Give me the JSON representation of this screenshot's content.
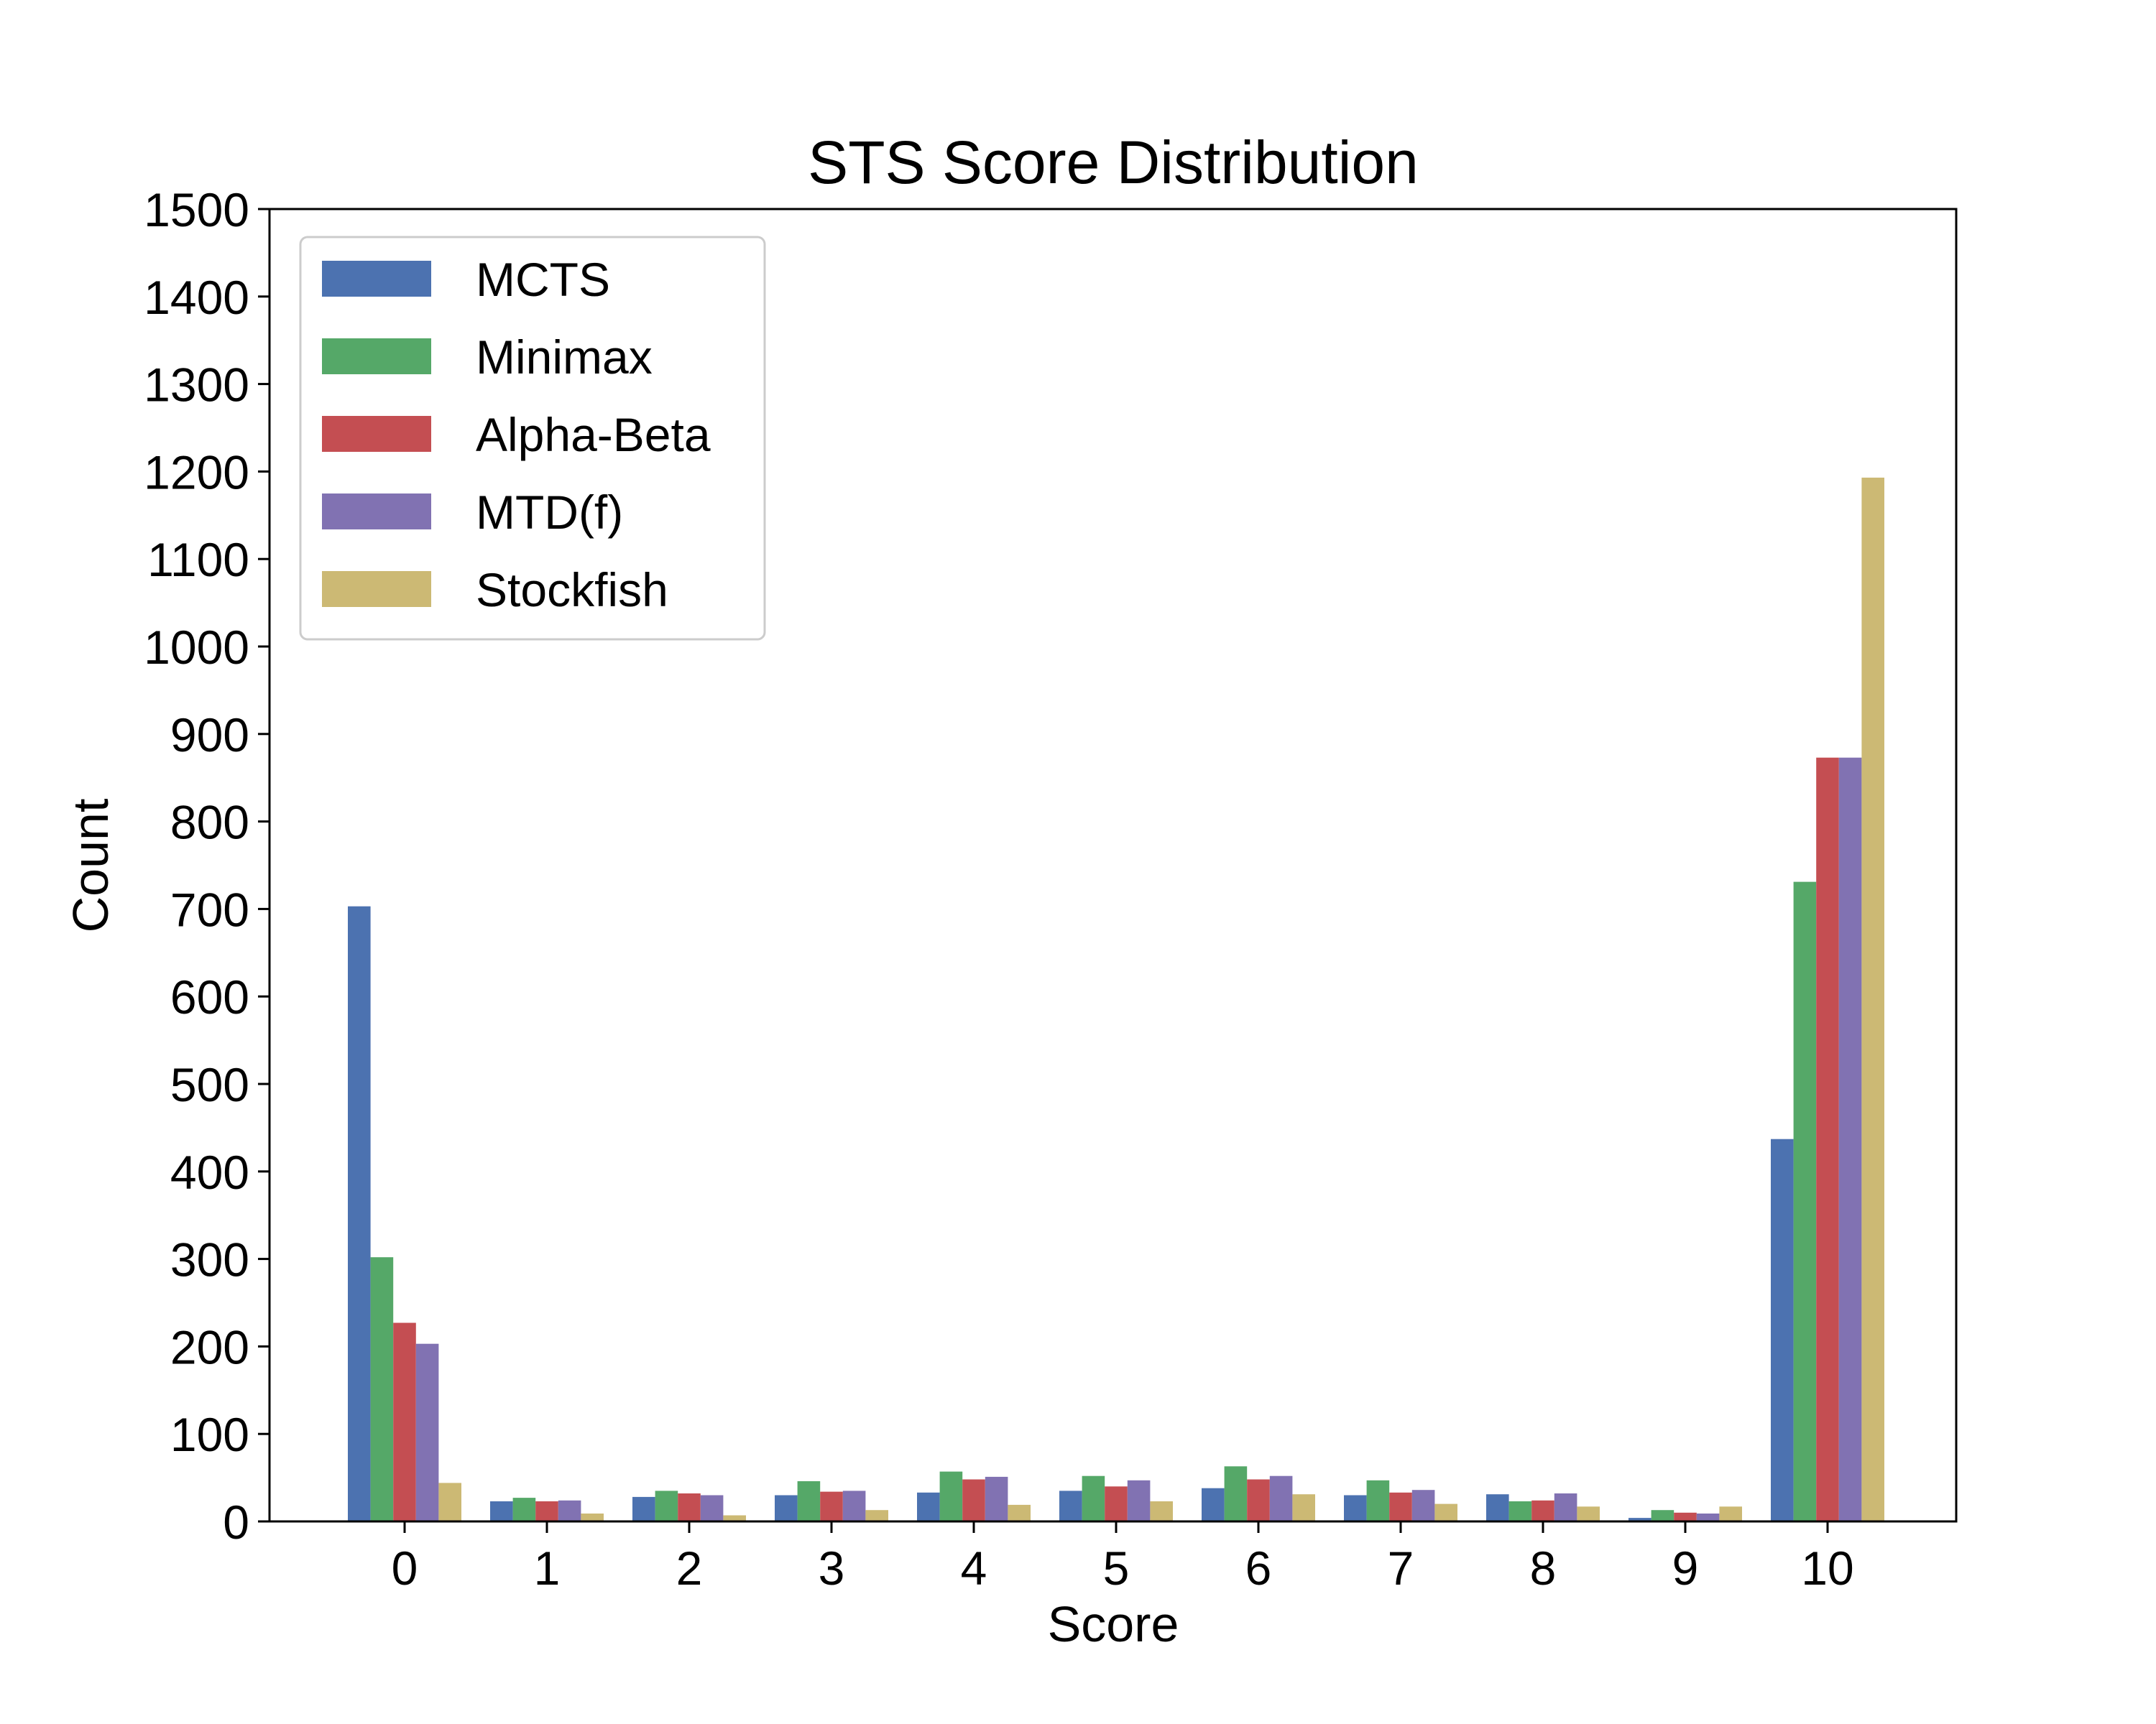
{
  "chart_data": {
    "type": "bar",
    "title": "STS Score Distribution",
    "xlabel": "Score",
    "ylabel": "Count",
    "categories": [
      "0",
      "1",
      "2",
      "3",
      "4",
      "5",
      "6",
      "7",
      "8",
      "9",
      "10"
    ],
    "ylim": [
      0,
      1500
    ],
    "yticks": [
      0,
      100,
      200,
      300,
      400,
      500,
      600,
      700,
      800,
      900,
      1000,
      1100,
      1200,
      1300,
      1400,
      1500
    ],
    "grid": false,
    "legend_position": "top-left",
    "series": [
      {
        "name": "MCTS",
        "color": "#4c72b0",
        "values": [
          703,
          23,
          28,
          30,
          33,
          35,
          38,
          30,
          31,
          4,
          437
        ]
      },
      {
        "name": "Minimax",
        "color": "#55a868",
        "values": [
          302,
          27,
          35,
          46,
          57,
          52,
          63,
          47,
          23,
          13,
          731
        ]
      },
      {
        "name": "Alpha-Beta",
        "color": "#c44e52",
        "values": [
          227,
          23,
          32,
          34,
          48,
          40,
          48,
          33,
          24,
          10,
          873
        ]
      },
      {
        "name": "MTD(f)",
        "color": "#8172b2",
        "values": [
          203,
          24,
          30,
          35,
          51,
          47,
          52,
          36,
          32,
          9,
          873
        ]
      },
      {
        "name": "Stockfish",
        "color": "#ccb974",
        "values": [
          44,
          9,
          7,
          13,
          19,
          23,
          31,
          20,
          17,
          17,
          1193
        ]
      }
    ]
  }
}
